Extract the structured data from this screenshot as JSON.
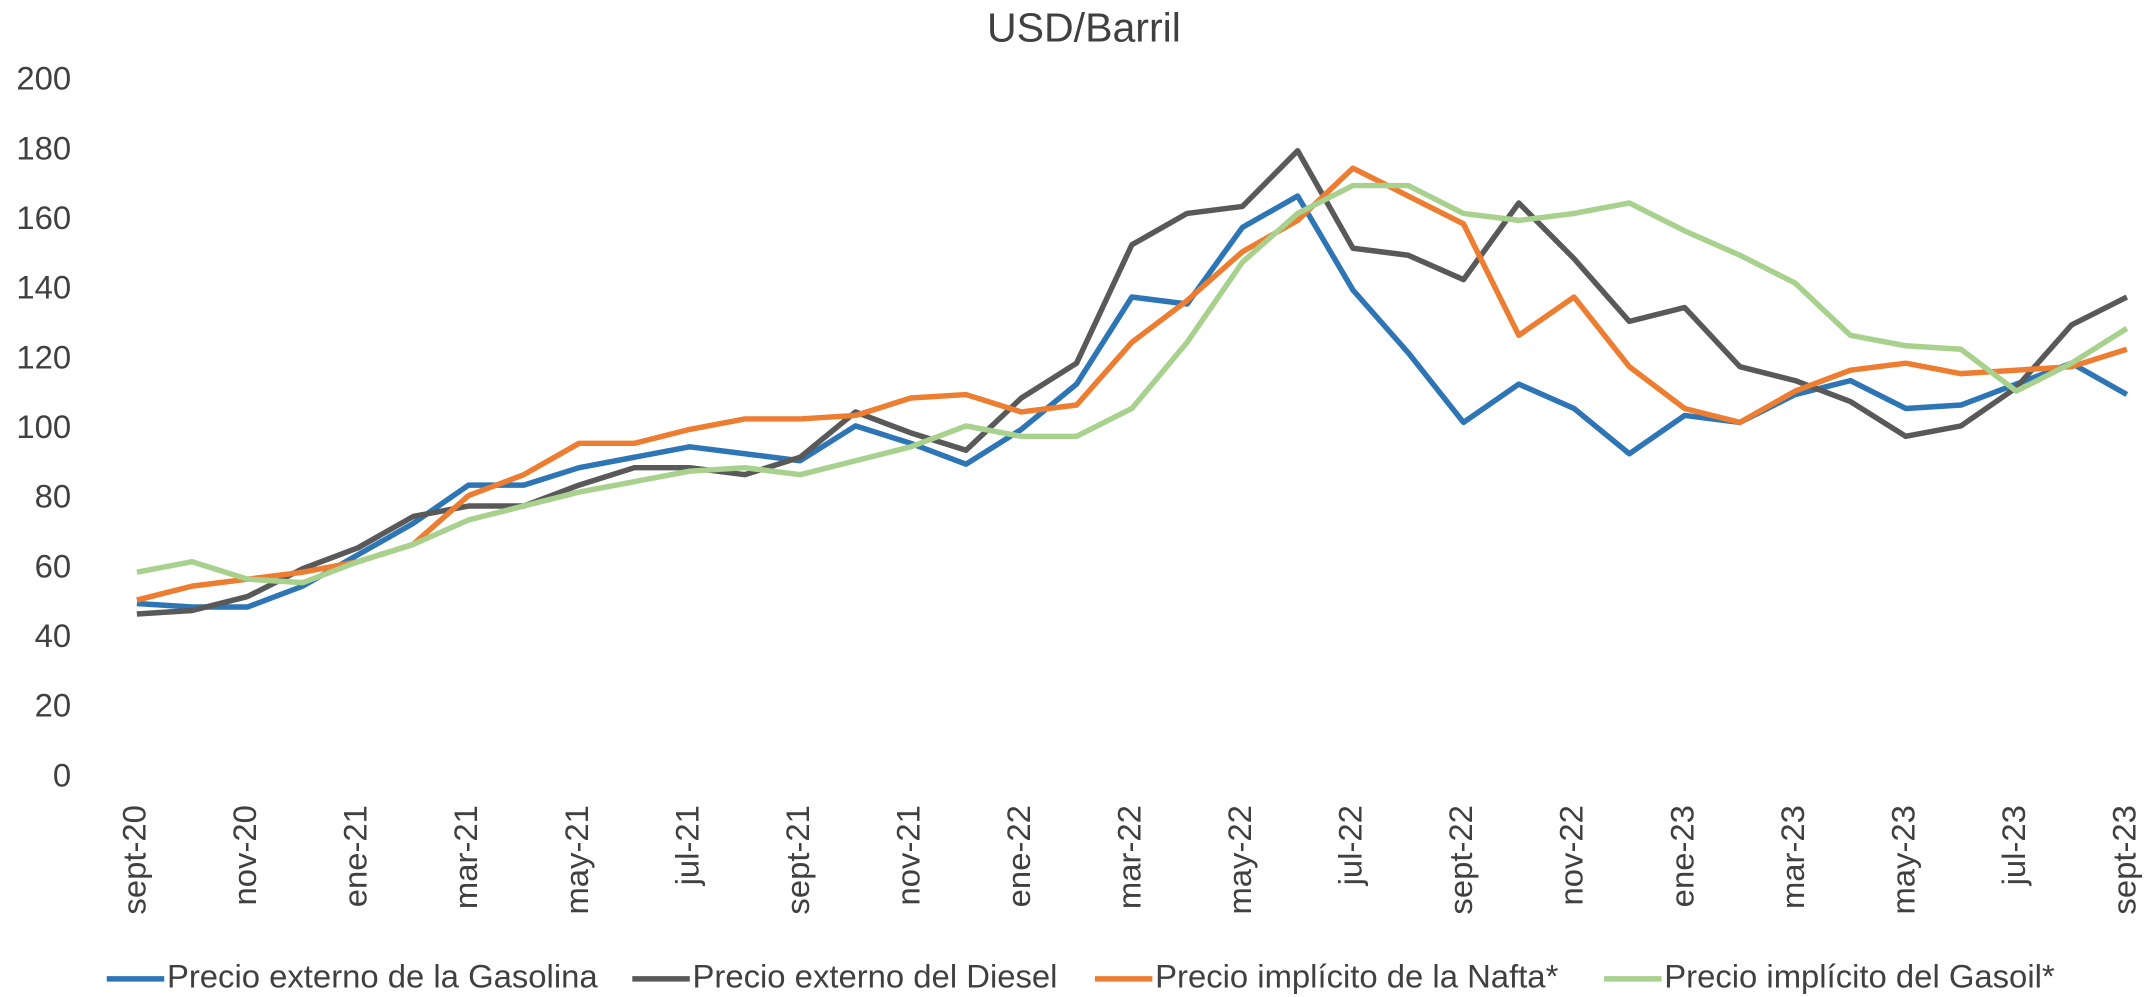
{
  "chart_data": {
    "type": "line",
    "title": "USD/Barril",
    "categories": [
      "sept-20",
      null,
      "nov-20",
      null,
      "ene-21",
      null,
      "mar-21",
      null,
      "may-21",
      null,
      "jul-21",
      null,
      "sept-21",
      null,
      "nov-21",
      null,
      "ene-22",
      null,
      "mar-22",
      null,
      "may-22",
      null,
      "jul-22",
      null,
      "sept-22",
      null,
      "nov-22",
      null,
      "ene-23",
      null,
      "mar-23",
      null,
      "may-23",
      null,
      "jul-23",
      null,
      "sept-23"
    ],
    "series": [
      {
        "name": "Precio externo de la Gasolina",
        "color": "#2e75b6",
        "values": [
          50,
          49,
          49,
          55,
          64,
          73,
          84,
          84,
          89,
          92,
          95,
          93,
          91,
          101,
          96,
          90,
          100,
          113,
          138,
          136,
          158,
          167,
          140,
          122,
          102,
          113,
          106,
          93,
          104,
          102,
          110,
          114,
          106,
          107,
          113,
          119,
          110
        ]
      },
      {
        "name": "Precio externo del Diesel",
        "color": "#595959",
        "values": [
          47,
          48,
          52,
          60,
          66,
          75,
          78,
          78,
          84,
          89,
          89,
          87,
          92,
          105,
          99,
          94,
          109,
          119,
          153,
          162,
          164,
          180,
          152,
          150,
          143,
          165,
          149,
          131,
          135,
          118,
          114,
          108,
          98,
          101,
          112,
          130,
          138
        ]
      },
      {
        "name": "Precio implícito de la Nafta*",
        "color": "#ed7d31",
        "values": [
          51,
          55,
          57,
          59,
          62,
          67,
          81,
          87,
          96,
          96,
          100,
          103,
          103,
          104,
          109,
          110,
          105,
          107,
          125,
          137,
          151,
          160,
          175,
          167,
          159,
          127,
          138,
          118,
          106,
          102,
          111,
          117,
          119,
          116,
          117,
          118,
          123
        ]
      },
      {
        "name": "Precio implícito del Gasoil*",
        "color": "#a9d18e",
        "values": [
          59,
          62,
          57,
          56,
          62,
          67,
          74,
          78,
          82,
          85,
          88,
          89,
          87,
          91,
          95,
          101,
          98,
          98,
          106,
          125,
          148,
          162,
          170,
          170,
          162,
          160,
          162,
          165,
          157,
          150,
          142,
          127,
          124,
          123,
          111,
          119,
          129
        ]
      }
    ],
    "ylim": [
      0,
      200
    ],
    "yticks": [
      0,
      20,
      40,
      60,
      80,
      100,
      120,
      140,
      160,
      180,
      200
    ],
    "grid": false,
    "legend": "bottom"
  }
}
